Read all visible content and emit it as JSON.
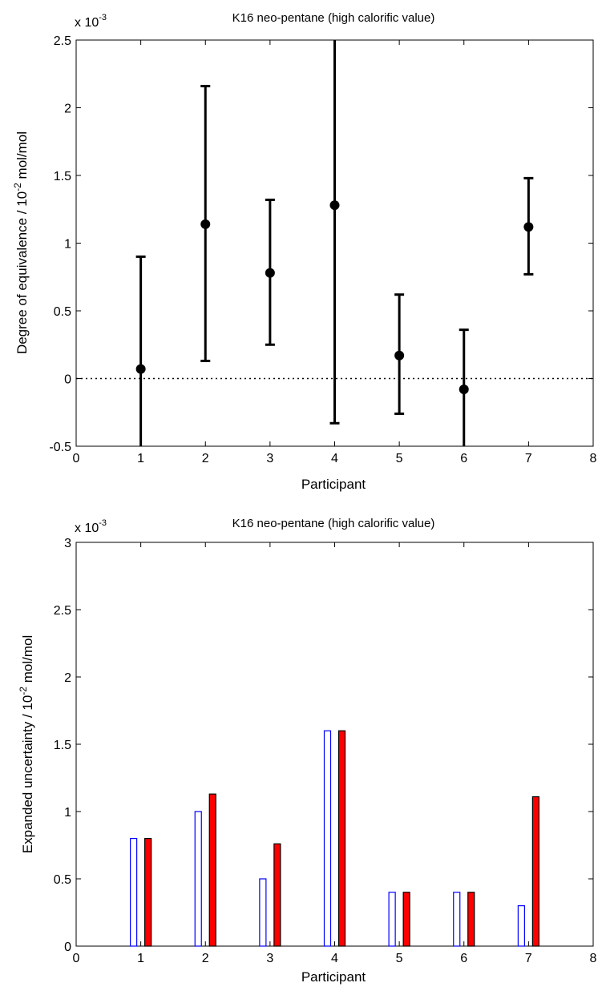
{
  "chart_data": [
    {
      "type": "scatter",
      "title": "K16 neo-pentane (high calorific value)",
      "xlabel": "Participant",
      "ylabel_main": "Degree of equivalence / 10",
      "ylabel_sup": "-2",
      "ylabel_unit": " mol/mol",
      "exponent_base": "x 10",
      "exponent_sup": "-3",
      "xlim": [
        0,
        8
      ],
      "ylim": [
        -0.5,
        2.5
      ],
      "xticks": [
        "0",
        "1",
        "2",
        "3",
        "4",
        "5",
        "6",
        "7",
        "8"
      ],
      "yticks": [
        "-0.5",
        "0",
        "0.5",
        "1",
        "1.5",
        "2",
        "2.5"
      ],
      "reference_line": 0,
      "x": [
        1,
        2,
        3,
        4,
        5,
        6,
        7
      ],
      "y": [
        0.07,
        1.14,
        0.78,
        1.28,
        0.17,
        -0.08,
        1.12
      ],
      "err_low": [
        -0.55,
        0.13,
        0.25,
        -0.33,
        -0.26,
        -0.55,
        0.77
      ],
      "err_high": [
        0.9,
        2.16,
        1.32,
        2.6,
        0.62,
        0.36,
        1.48
      ]
    },
    {
      "type": "bar",
      "title": "K16 neo-pentane (high calorific value)",
      "xlabel": "Participant",
      "ylabel_main": "Expanded uncertainty / 10",
      "ylabel_sup": "-2",
      "ylabel_unit": " mol/mol",
      "exponent_base": "x 10",
      "exponent_sup": "-3",
      "xlim": [
        0,
        8
      ],
      "ylim": [
        0,
        3
      ],
      "xticks": [
        "0",
        "1",
        "2",
        "3",
        "4",
        "5",
        "6",
        "7",
        "8"
      ],
      "yticks": [
        "0",
        "0.5",
        "1",
        "1.5",
        "2",
        "2.5",
        "3"
      ],
      "categories": [
        1,
        2,
        3,
        4,
        5,
        6,
        7
      ],
      "series": [
        {
          "values": [
            0.8,
            1.0,
            0.5,
            1.6,
            0.4,
            0.4,
            0.3
          ],
          "color": "#0000ff",
          "fill": "none"
        },
        {
          "values": [
            0.8,
            1.13,
            0.76,
            1.6,
            0.4,
            0.4,
            1.11
          ],
          "color": "#000000",
          "fill": "#ff0000"
        }
      ]
    }
  ]
}
